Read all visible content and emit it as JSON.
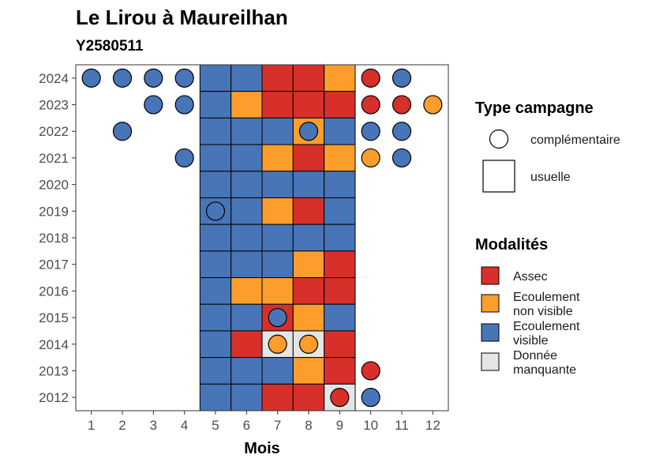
{
  "chart_data": {
    "type": "heatmap",
    "title": "Le Lirou à Maureilhan",
    "subtitle": "Y2580511",
    "xlabel": "Mois",
    "ylabel": "",
    "x_ticks": [
      1,
      2,
      3,
      4,
      5,
      6,
      7,
      8,
      9,
      10,
      11,
      12
    ],
    "y_ticks": [
      2012,
      2013,
      2014,
      2015,
      2016,
      2017,
      2018,
      2019,
      2020,
      2021,
      2022,
      2023,
      2024
    ],
    "xlim": [
      0.5,
      12.5
    ],
    "ylim": [
      2011.5,
      2024.5
    ],
    "grid": false,
    "legend_position": "right",
    "colors": {
      "Assec": "#d7302b",
      "Ecoulement non visible": "#fd9d2b",
      "Ecoulement visible": "#4775b8",
      "Donnée manquante": "#e5e5e5"
    },
    "legend": {
      "type_campagne": {
        "title": "Type campagne",
        "entries": [
          {
            "key": "complementaire",
            "label": "complémentaire",
            "shape": "circle"
          },
          {
            "key": "usuelle",
            "label": "usuelle",
            "shape": "square"
          }
        ]
      },
      "modalites": {
        "title": "Modalités",
        "entries": [
          {
            "key": "Assec",
            "lines": [
              "Assec"
            ]
          },
          {
            "key": "Ecoulement non visible",
            "lines": [
              "Ecoulement",
              "non visible"
            ]
          },
          {
            "key": "Ecoulement visible",
            "lines": [
              "Ecoulement",
              "visible"
            ]
          },
          {
            "key": "Donnée manquante",
            "lines": [
              "Donnée",
              "manquante"
            ]
          }
        ]
      }
    },
    "usuelle": [
      {
        "year": 2024,
        "values": {
          "5": "Ecoulement visible",
          "6": "Ecoulement visible",
          "7": "Assec",
          "8": "Assec",
          "9": "Ecoulement non visible"
        }
      },
      {
        "year": 2023,
        "values": {
          "5": "Ecoulement visible",
          "6": "Ecoulement non visible",
          "7": "Assec",
          "8": "Assec",
          "9": "Assec"
        }
      },
      {
        "year": 2022,
        "values": {
          "5": "Ecoulement visible",
          "6": "Ecoulement visible",
          "7": "Ecoulement visible",
          "8": "Ecoulement non visible",
          "9": "Ecoulement visible"
        }
      },
      {
        "year": 2021,
        "values": {
          "5": "Ecoulement visible",
          "6": "Ecoulement visible",
          "7": "Ecoulement non visible",
          "8": "Assec",
          "9": "Ecoulement non visible"
        }
      },
      {
        "year": 2020,
        "values": {
          "5": "Ecoulement visible",
          "6": "Ecoulement visible",
          "7": "Ecoulement visible",
          "8": "Ecoulement visible",
          "9": "Ecoulement visible"
        }
      },
      {
        "year": 2019,
        "values": {
          "5": "Ecoulement visible",
          "6": "Ecoulement visible",
          "7": "Ecoulement non visible",
          "8": "Assec",
          "9": "Ecoulement visible"
        }
      },
      {
        "year": 2018,
        "values": {
          "5": "Ecoulement visible",
          "6": "Ecoulement visible",
          "7": "Ecoulement visible",
          "8": "Ecoulement visible",
          "9": "Ecoulement visible"
        }
      },
      {
        "year": 2017,
        "values": {
          "5": "Ecoulement visible",
          "6": "Ecoulement visible",
          "7": "Ecoulement visible",
          "8": "Ecoulement non visible",
          "9": "Assec"
        }
      },
      {
        "year": 2016,
        "values": {
          "5": "Ecoulement visible",
          "6": "Ecoulement non visible",
          "7": "Ecoulement non visible",
          "8": "Assec",
          "9": "Assec"
        }
      },
      {
        "year": 2015,
        "values": {
          "5": "Ecoulement visible",
          "6": "Ecoulement visible",
          "7": "Assec",
          "8": "Ecoulement non visible",
          "9": "Ecoulement visible"
        }
      },
      {
        "year": 2014,
        "values": {
          "5": "Ecoulement visible",
          "6": "Assec",
          "7": "Donnée manquante",
          "8": "Donnée manquante",
          "9": "Assec"
        }
      },
      {
        "year": 2013,
        "values": {
          "5": "Ecoulement visible",
          "6": "Ecoulement visible",
          "7": "Ecoulement visible",
          "8": "Ecoulement non visible",
          "9": "Assec"
        }
      },
      {
        "year": 2012,
        "values": {
          "5": "Ecoulement visible",
          "6": "Ecoulement visible",
          "7": "Assec",
          "8": "Assec",
          "9": "Donnée manquante"
        }
      }
    ],
    "complementaire": [
      {
        "year": 2024,
        "month": 1,
        "value": "Ecoulement visible"
      },
      {
        "year": 2024,
        "month": 2,
        "value": "Ecoulement visible"
      },
      {
        "year": 2024,
        "month": 3,
        "value": "Ecoulement visible"
      },
      {
        "year": 2024,
        "month": 4,
        "value": "Ecoulement visible"
      },
      {
        "year": 2024,
        "month": 10,
        "value": "Assec"
      },
      {
        "year": 2024,
        "month": 11,
        "value": "Ecoulement visible"
      },
      {
        "year": 2023,
        "month": 3,
        "value": "Ecoulement visible"
      },
      {
        "year": 2023,
        "month": 4,
        "value": "Ecoulement visible"
      },
      {
        "year": 2023,
        "month": 10,
        "value": "Assec"
      },
      {
        "year": 2023,
        "month": 11,
        "value": "Assec"
      },
      {
        "year": 2023,
        "month": 12,
        "value": "Ecoulement non visible"
      },
      {
        "year": 2022,
        "month": 2,
        "value": "Ecoulement visible"
      },
      {
        "year": 2022,
        "month": 8,
        "value": "Ecoulement visible"
      },
      {
        "year": 2022,
        "month": 10,
        "value": "Ecoulement visible"
      },
      {
        "year": 2022,
        "month": 11,
        "value": "Ecoulement visible"
      },
      {
        "year": 2021,
        "month": 4,
        "value": "Ecoulement visible"
      },
      {
        "year": 2021,
        "month": 10,
        "value": "Ecoulement non visible"
      },
      {
        "year": 2021,
        "month": 11,
        "value": "Ecoulement visible"
      },
      {
        "year": 2019,
        "month": 5,
        "value": "Ecoulement visible"
      },
      {
        "year": 2015,
        "month": 7,
        "value": "Ecoulement visible"
      },
      {
        "year": 2014,
        "month": 7,
        "value": "Ecoulement non visible"
      },
      {
        "year": 2014,
        "month": 8,
        "value": "Ecoulement non visible"
      },
      {
        "year": 2013,
        "month": 10,
        "value": "Assec"
      },
      {
        "year": 2012,
        "month": 9,
        "value": "Assec"
      },
      {
        "year": 2012,
        "month": 10,
        "value": "Ecoulement visible"
      }
    ]
  }
}
